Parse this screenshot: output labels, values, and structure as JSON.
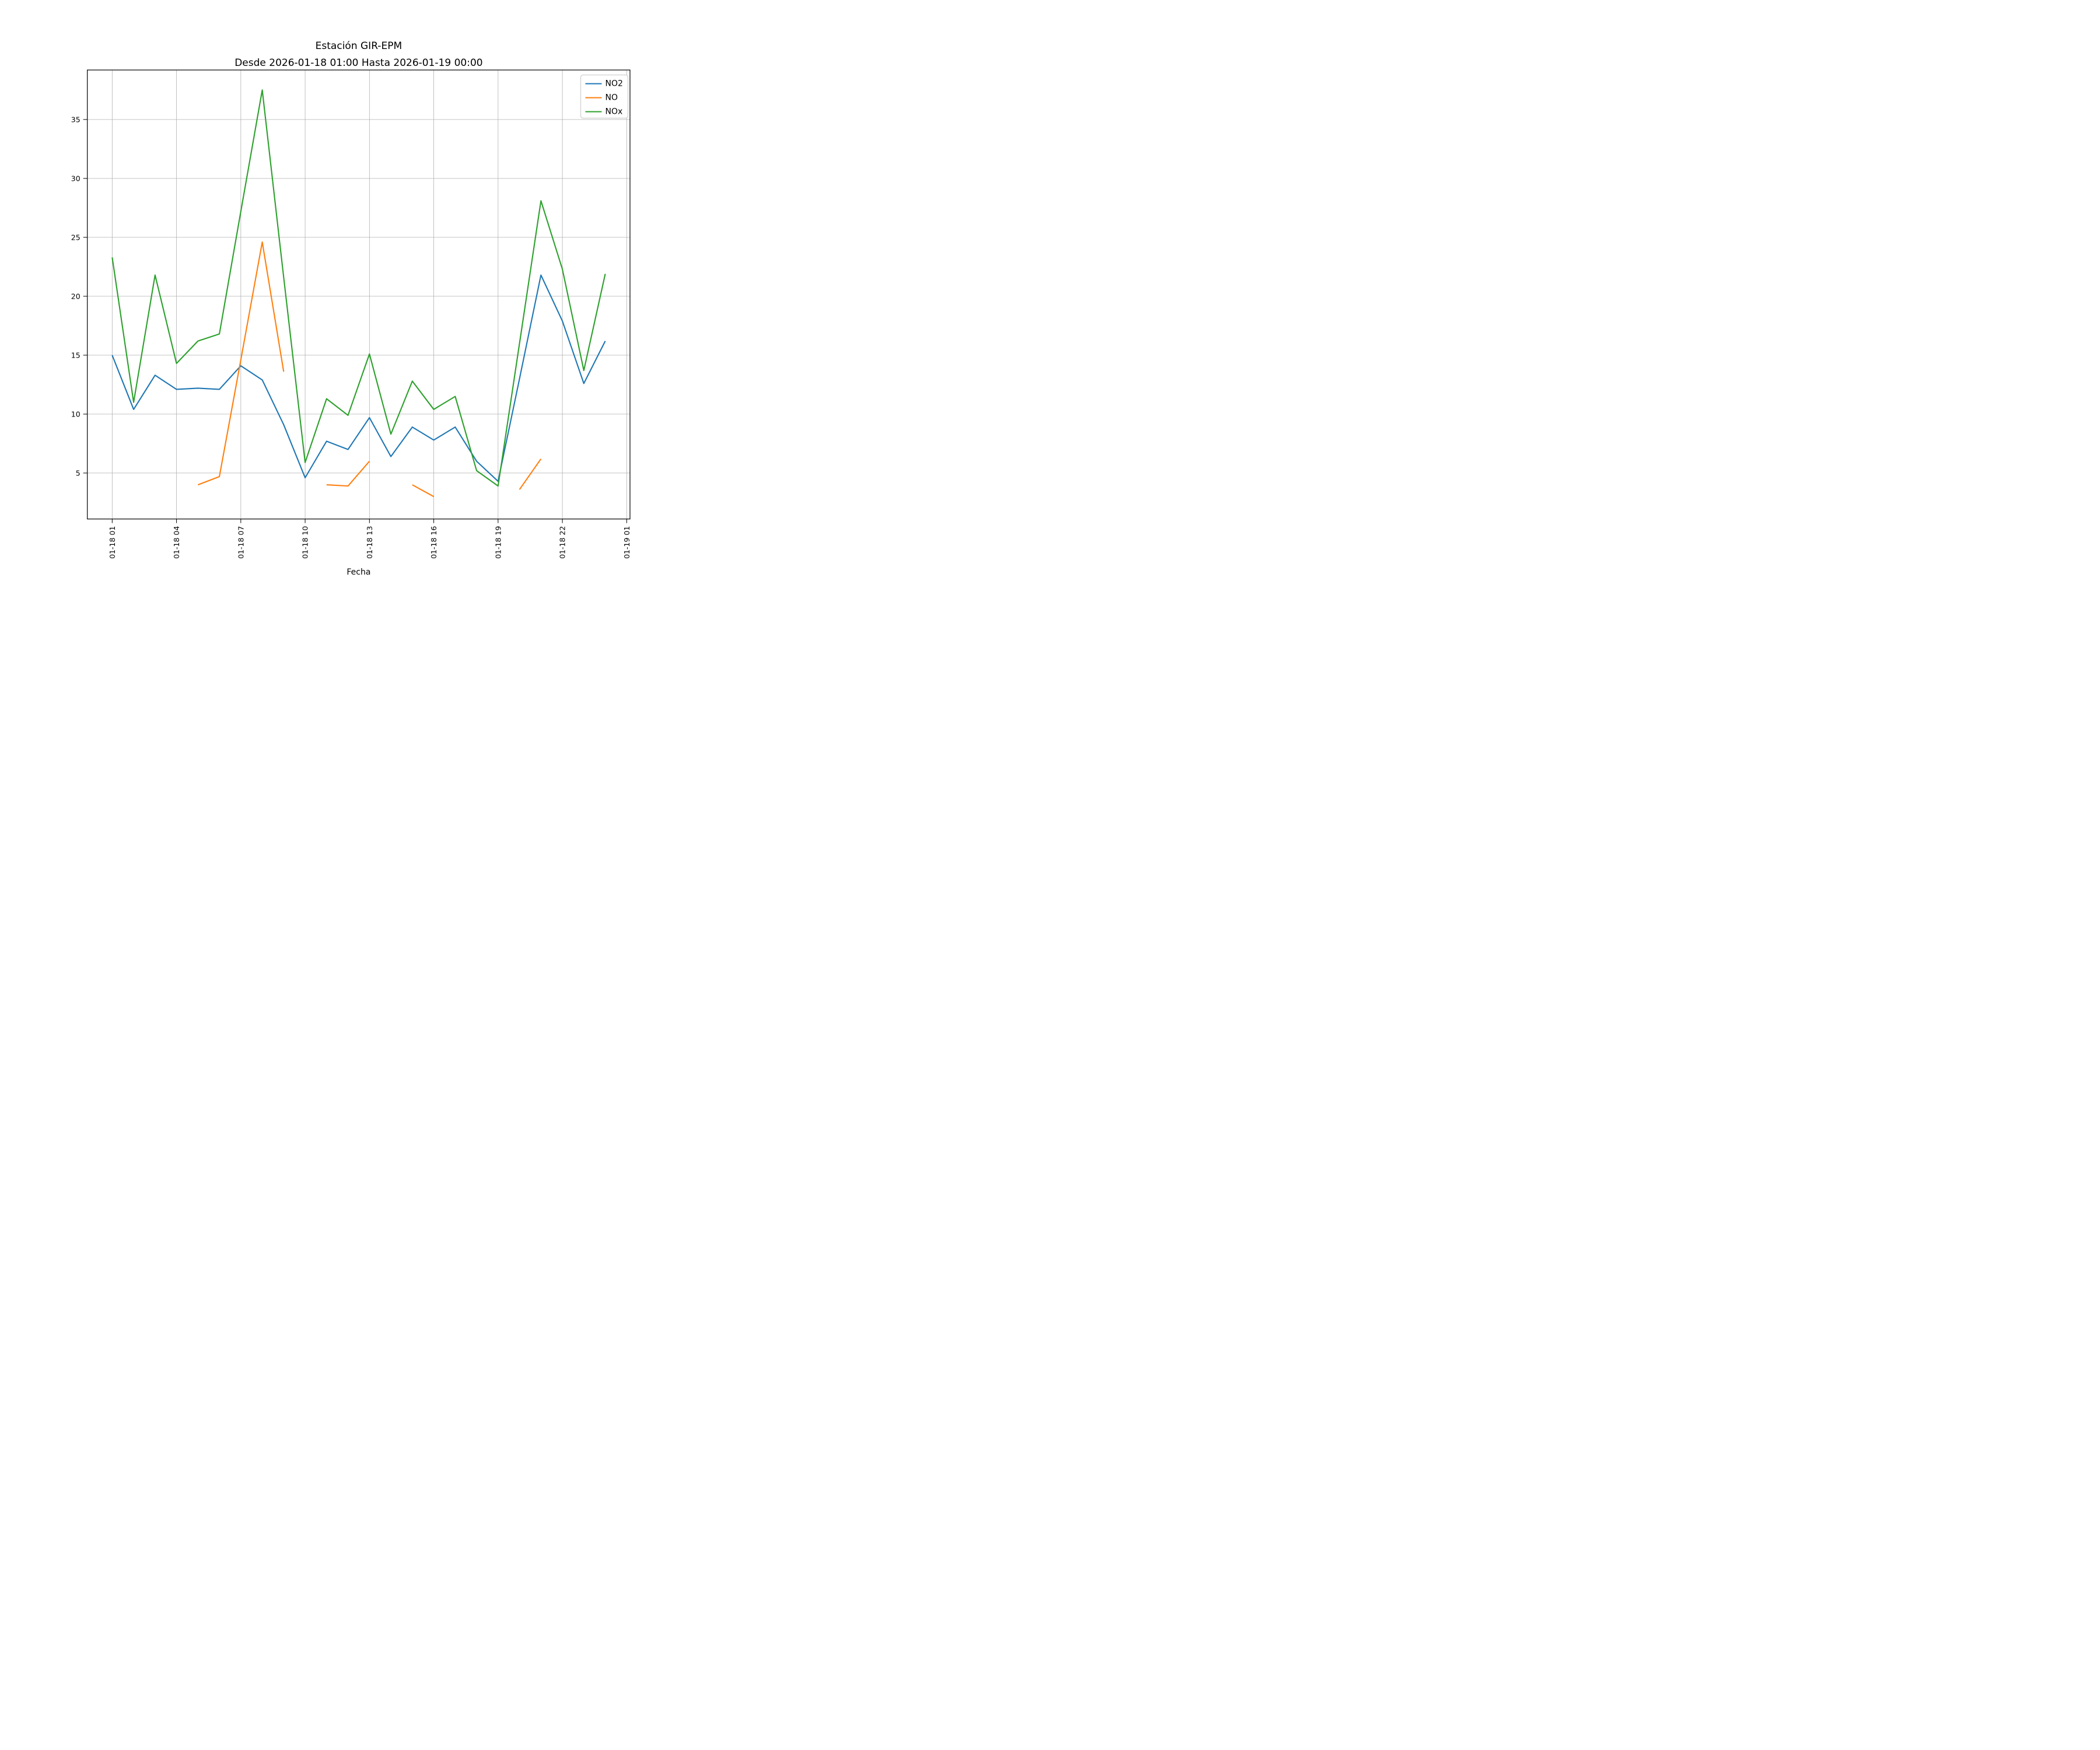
{
  "chart_data": {
    "type": "line",
    "title_line1": "Estación GIR-EPM",
    "title_line2": "Desde 2026-01-18 01:00 Hasta 2026-01-19 00:00",
    "xlabel": "Fecha",
    "ylabel": "",
    "x": [
      "01-18 01",
      "01-18 02",
      "01-18 03",
      "01-18 04",
      "01-18 05",
      "01-18 06",
      "01-18 07",
      "01-18 08",
      "01-18 09",
      "01-18 10",
      "01-18 11",
      "01-18 12",
      "01-18 13",
      "01-18 14",
      "01-18 15",
      "01-18 16",
      "01-18 17",
      "01-18 18",
      "01-18 19",
      "01-18 20",
      "01-18 21",
      "01-18 22",
      "01-18 23",
      "01-19 00"
    ],
    "x_tick_labels": [
      "01-18 01",
      "01-18 04",
      "01-18 07",
      "01-18 10",
      "01-18 13",
      "01-18 16",
      "01-18 19",
      "01-18 22",
      "01-19 01"
    ],
    "x_tick_every": 3,
    "y_ticks": [
      5,
      10,
      15,
      20,
      25,
      30,
      35
    ],
    "ylim": [
      1.1,
      39.2
    ],
    "grid": true,
    "grid_color": "#b0b0b0",
    "spine_color": "#000000",
    "background_color": "#ffffff",
    "legend_position": "upper right",
    "series": [
      {
        "name": "NO2",
        "color": "#1f77b4",
        "values": [
          15.0,
          10.4,
          13.3,
          12.1,
          12.2,
          12.1,
          14.1,
          12.9,
          9.1,
          4.6,
          7.7,
          7.0,
          9.7,
          6.4,
          8.9,
          7.8,
          8.9,
          6.0,
          4.3,
          13.0,
          21.8,
          17.9,
          12.6,
          16.2
        ]
      },
      {
        "name": "NO",
        "color": "#ff7f0e",
        "values": [
          null,
          null,
          null,
          null,
          4.0,
          4.7,
          14.6,
          24.6,
          13.6,
          null,
          4.0,
          3.9,
          6.0,
          null,
          4.0,
          3.0,
          null,
          null,
          null,
          3.6,
          6.2,
          null,
          null,
          null
        ]
      },
      {
        "name": "NOx",
        "color": "#2ca02c",
        "values": [
          23.3,
          11.0,
          21.8,
          14.3,
          16.2,
          16.8,
          27.2,
          37.5,
          21.6,
          5.9,
          11.3,
          9.9,
          15.1,
          8.3,
          12.8,
          10.4,
          11.5,
          5.2,
          3.9,
          16.0,
          28.1,
          22.3,
          13.7,
          21.9
        ]
      }
    ]
  }
}
